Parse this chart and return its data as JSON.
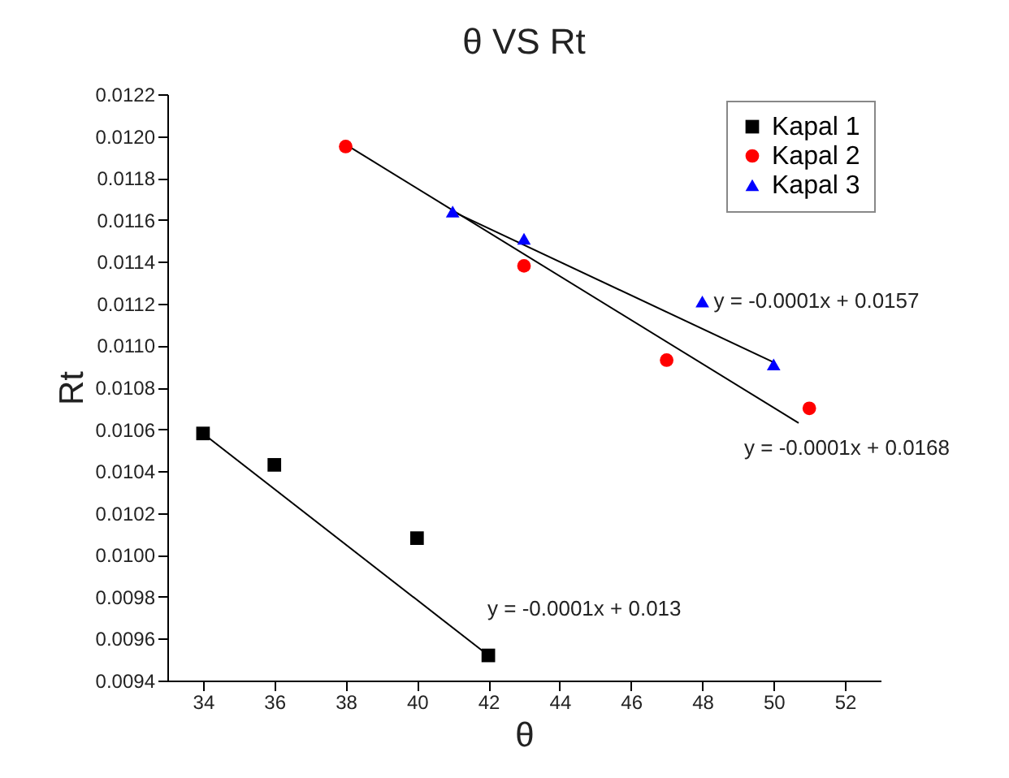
{
  "chart_data": {
    "type": "scatter",
    "title": "θ VS Rt",
    "xlabel": "θ",
    "ylabel": "Rt",
    "xlim": [
      33,
      53
    ],
    "xticks": [
      34,
      36,
      38,
      40,
      42,
      44,
      46,
      48,
      50,
      52
    ],
    "ylim": [
      0.0094,
      0.0122
    ],
    "yticks": [
      {
        "value": 0.0094,
        "label": "0.0094"
      },
      {
        "value": 0.0096,
        "label": "0.0096"
      },
      {
        "value": 0.0098,
        "label": "0.0098"
      },
      {
        "value": 0.01,
        "label": "0.0100"
      },
      {
        "value": 0.0102,
        "label": "0.0102"
      },
      {
        "value": 0.0104,
        "label": "0.0104"
      },
      {
        "value": 0.0106,
        "label": "0.0106"
      },
      {
        "value": 0.0108,
        "label": "0.0108"
      },
      {
        "value": 0.011,
        "label": "0.0110"
      },
      {
        "value": 0.0112,
        "label": "0.0112"
      },
      {
        "value": 0.0114,
        "label": "0.0114"
      },
      {
        "value": 0.0116,
        "label": "0.0116"
      },
      {
        "value": 0.0118,
        "label": "0.0118"
      },
      {
        "value": 0.012,
        "label": "0.0120"
      },
      {
        "value": 0.0122,
        "label": "0.0122"
      }
    ],
    "grid": false,
    "legend": "top right",
    "series": [
      {
        "name": "Kapal 1",
        "color": "#000000",
        "marker": "square",
        "x": [
          34,
          36,
          40,
          42
        ],
        "values": [
          0.01058,
          0.01043,
          0.01008,
          0.00952
        ]
      },
      {
        "name": "Kapal 2",
        "color": "#ff0000",
        "marker": "circle",
        "x": [
          38,
          43,
          47,
          51
        ],
        "values": [
          0.01195,
          0.01138,
          0.01093,
          0.0107
        ]
      },
      {
        "name": "Kapal 3",
        "color": "#0000ff",
        "marker": "triangle",
        "x": [
          41,
          43,
          48,
          50
        ],
        "values": [
          0.01164,
          0.01151,
          0.01121,
          0.01091
        ]
      },
      {
        "type": "line",
        "color": "#000000",
        "x": [
          34,
          42
        ],
        "values": [
          0.01058,
          0.00952
        ]
      },
      {
        "type": "line",
        "color": "#000000",
        "x": [
          38,
          50.7
        ],
        "values": [
          0.01196,
          0.01063
        ]
      },
      {
        "type": "line",
        "color": "#000000",
        "x": [
          41,
          50
        ],
        "values": [
          0.01164,
          0.01092
        ]
      }
    ],
    "annotations": [
      {
        "text": "y = -0.0001x + 0.0157",
        "x": 48,
        "y": 0.01121
      },
      "y = -0.0001x + 0.0168",
      "y = -0.0001x + 0.013"
    ]
  }
}
